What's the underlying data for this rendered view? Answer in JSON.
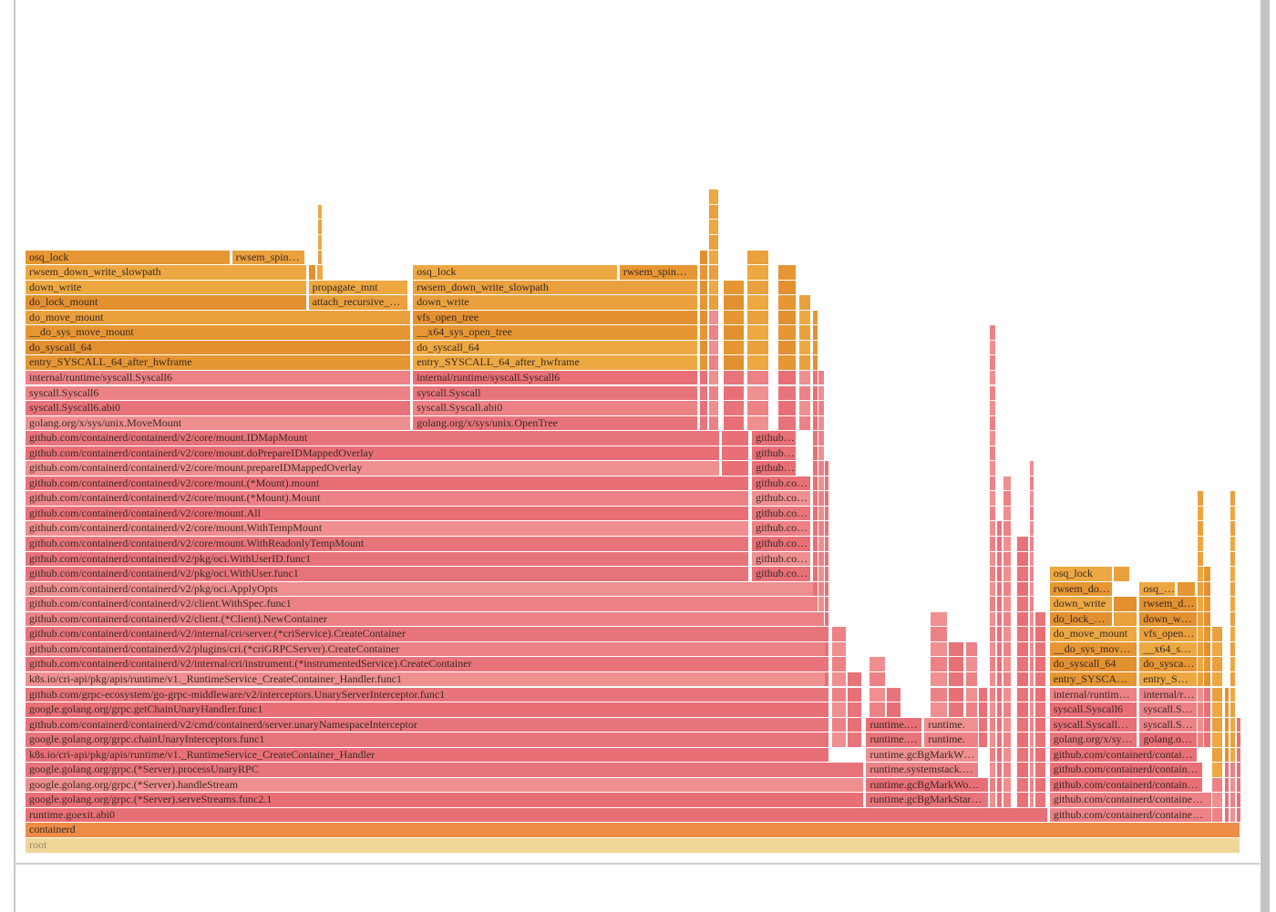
{
  "colors": {
    "kernel": [
      "#e69632",
      "#eaa03d",
      "#e39030",
      "#eda842"
    ],
    "go": [
      "#e8747b",
      "#ec8286",
      "#e96f77",
      "#ef8f90"
    ],
    "containerd": "#ec8c46",
    "root": "#efd699"
  },
  "chart_data": {
    "type": "flamegraph",
    "units": "percent of samples",
    "frames_format": [
      "depth",
      "start_pct",
      "width_pct",
      "name",
      "kind"
    ],
    "frames": [
      [
        0,
        0,
        100,
        "root",
        "r"
      ],
      [
        1,
        0,
        100,
        "containerd",
        "c"
      ],
      [
        2,
        0,
        84.2,
        "runtime.goexit.abi0",
        "p"
      ],
      [
        2,
        84.3,
        13.4,
        "github.com/containerd/containe…",
        "p"
      ],
      [
        3,
        0,
        69.0,
        "google.golang.org/grpc.(*Server).serveStreams.func2.1",
        "p"
      ],
      [
        3,
        69.2,
        10.1,
        "runtime.gcBgMarkStar…",
        "p"
      ],
      [
        3,
        84.3,
        13.4,
        "github.com/containerd/containe…",
        "p"
      ],
      [
        4,
        0,
        69.0,
        "google.golang.org/grpc.(*Server).handleStream",
        "p"
      ],
      [
        4,
        69.2,
        10.1,
        "runtime.gcBgMarkWo…",
        "p"
      ],
      [
        4,
        84.3,
        12.6,
        "github.com/containerd/contain…",
        "p"
      ],
      [
        5,
        0,
        69.0,
        "google.golang.org/grpc.(*Server).processUnaryRPC",
        "p"
      ],
      [
        5,
        69.2,
        9.3,
        "runtime.systemstack.…",
        "p"
      ],
      [
        5,
        84.3,
        12.6,
        "github.com/containerd/contain…",
        "p"
      ],
      [
        6,
        0,
        66.2,
        "k8s.io/cri-api/pkg/apis/runtime/v1._RuntimeService_CreateContainer_Handler",
        "p"
      ],
      [
        6,
        69.2,
        9.3,
        "runtime.gcBgMarkW…",
        "p"
      ],
      [
        6,
        84.3,
        12.2,
        "github.com/containerd/contai…",
        "p"
      ],
      [
        7,
        0,
        66.2,
        "google.golang.org/grpc.chainUnaryInterceptors.func1",
        "p"
      ],
      [
        7,
        69.2,
        4.6,
        "runtime.…",
        "p"
      ],
      [
        7,
        74.0,
        4.5,
        "runtime.…",
        "p"
      ],
      [
        7,
        84.3,
        7.2,
        "golang.org/x/sy…",
        "p"
      ],
      [
        7,
        91.7,
        4.8,
        "golang.o…",
        "p"
      ],
      [
        8,
        0,
        66.2,
        "github.com/containerd/containerd/v2/cmd/containerd/server.unaryNamespaceInterceptor",
        "p"
      ],
      [
        8,
        69.2,
        4.6,
        "runtime.…",
        "p"
      ],
      [
        8,
        74.0,
        4.5,
        "runtime.…",
        "p"
      ],
      [
        8,
        84.3,
        7.2,
        "syscall.Syscall…",
        "p"
      ],
      [
        8,
        91.7,
        4.8,
        "syscall.S…",
        "p"
      ],
      [
        9,
        0,
        66.2,
        "google.golang.org/grpc.getChainUnaryHandler.func1",
        "p"
      ],
      [
        9,
        84.3,
        7.2,
        "syscall.Syscall6",
        "p"
      ],
      [
        9,
        91.7,
        4.8,
        "syscall.S…",
        "p"
      ],
      [
        10,
        0,
        66.2,
        "github.com/grpc-ecosystem/go-grpc-middleware/v2/interceptors.UnaryServerInterceptor.func1",
        "p"
      ],
      [
        10,
        84.3,
        7.2,
        "internal/runtim…",
        "p"
      ],
      [
        10,
        91.7,
        4.8,
        "internal/r…",
        "p"
      ],
      [
        11,
        0,
        66.2,
        "k8s.io/cri-api/pkg/apis/runtime/v1._RuntimeService_CreateContainer_Handler.func1",
        "p"
      ],
      [
        11,
        84.3,
        7.2,
        "entry_SYSCA…",
        "o"
      ],
      [
        11,
        91.7,
        4.8,
        "entry_S…",
        "o"
      ],
      [
        12,
        0,
        66.2,
        "github.com/containerd/containerd/v2/internal/cri/instrument.(*instrumentedService).CreateContainer",
        "p"
      ],
      [
        12,
        84.3,
        7.2,
        "do_syscall_64",
        "o"
      ],
      [
        12,
        91.7,
        4.8,
        "do_sysca…",
        "o"
      ],
      [
        13,
        0,
        66.2,
        "github.com/containerd/containerd/v2/plugins/cri.(*criGRPCServer).CreateContainer",
        "p"
      ],
      [
        13,
        84.3,
        7.2,
        "__do_sys_mov…",
        "o"
      ],
      [
        13,
        91.7,
        4.8,
        "__x64_s…",
        "o"
      ],
      [
        14,
        0,
        66.2,
        "github.com/containerd/containerd/v2/internal/cri/server.(*criService).CreateContainer",
        "p"
      ],
      [
        14,
        84.3,
        7.2,
        "do_move_mount",
        "o"
      ],
      [
        14,
        91.7,
        4.8,
        "vfs_open…",
        "o"
      ],
      [
        15,
        0,
        65.8,
        "github.com/containerd/containerd/v2/client.(*Client).NewContainer",
        "p"
      ],
      [
        15,
        84.3,
        5.2,
        "do_lock_…",
        "o"
      ],
      [
        15,
        89.6,
        1.9,
        "",
        "o"
      ],
      [
        15,
        91.7,
        4.8,
        "down_w…",
        "o"
      ],
      [
        16,
        0,
        65.3,
        "github.com/containerd/containerd/v2/client.WithSpec.func1",
        "p"
      ],
      [
        16,
        84.3,
        5.2,
        "down_write",
        "o"
      ],
      [
        16,
        89.6,
        1.9,
        "",
        "o"
      ],
      [
        16,
        91.7,
        4.8,
        "rwsem_d…",
        "o"
      ],
      [
        17,
        0,
        65.3,
        "github.com/containerd/containerd/v2/pkg/oci.ApplyOpts",
        "p"
      ],
      [
        17,
        84.3,
        5.2,
        "rwsem_do…",
        "o"
      ],
      [
        17,
        91.7,
        3.0,
        "osq_…",
        "o"
      ],
      [
        17,
        94.8,
        1.5,
        "",
        "o"
      ],
      [
        18,
        0,
        59.6,
        "github.com/containerd/containerd/v2/pkg/oci.WithUser.func1",
        "p"
      ],
      [
        18,
        59.8,
        4.9,
        "github.co…",
        "p"
      ],
      [
        18,
        84.3,
        5.2,
        "osq_lock",
        "o"
      ],
      [
        18,
        89.6,
        1.3,
        "",
        "o"
      ],
      [
        19,
        0,
        59.6,
        "github.com/containerd/containerd/v2/pkg/oci.WithUserID.func1",
        "p"
      ],
      [
        19,
        59.8,
        4.9,
        "github.co…",
        "p"
      ],
      [
        20,
        0,
        59.6,
        "github.com/containerd/containerd/v2/core/mount.WithReadonlyTempMount",
        "p"
      ],
      [
        20,
        59.8,
        4.9,
        "github.co…",
        "p"
      ],
      [
        21,
        0,
        59.6,
        "github.com/containerd/containerd/v2/core/mount.WithTempMount",
        "p"
      ],
      [
        21,
        59.8,
        4.9,
        "github.co…",
        "p"
      ],
      [
        22,
        0,
        59.6,
        "github.com/containerd/containerd/v2/core/mount.All",
        "p"
      ],
      [
        22,
        59.8,
        4.9,
        "github.co…",
        "p"
      ],
      [
        23,
        0,
        59.6,
        "github.com/containerd/containerd/v2/core/mount.(*Mount).Mount",
        "p"
      ],
      [
        23,
        59.8,
        4.9,
        "github.co…",
        "p"
      ],
      [
        24,
        0,
        59.6,
        "github.com/containerd/containerd/v2/core/mount.(*Mount).mount",
        "p"
      ],
      [
        24,
        59.8,
        4.9,
        "github.co…",
        "p"
      ],
      [
        25,
        0,
        57.2,
        "github.com/containerd/containerd/v2/core/mount.prepareIDMappedOverlay",
        "p"
      ],
      [
        25,
        57.3,
        2.3,
        "",
        "p"
      ],
      [
        25,
        59.8,
        3.7,
        "github…",
        "p"
      ],
      [
        26,
        0,
        57.2,
        "github.com/containerd/containerd/v2/core/mount.doPrepareIDMappedOverlay",
        "p"
      ],
      [
        26,
        57.3,
        2.3,
        "",
        "p"
      ],
      [
        26,
        59.8,
        3.7,
        "github…",
        "p"
      ],
      [
        27,
        0,
        57.2,
        "github.com/containerd/containerd/v2/core/mount.IDMapMount",
        "p"
      ],
      [
        27,
        57.3,
        2.3,
        "",
        "p"
      ],
      [
        27,
        59.8,
        3.7,
        "github…",
        "p"
      ],
      [
        28,
        0,
        31.7,
        "golang.org/x/sys/unix.MoveMount",
        "p"
      ],
      [
        28,
        31.9,
        23.5,
        "golang.org/x/sys/unix.OpenTree",
        "p"
      ],
      [
        29,
        0,
        31.7,
        "syscall.Syscall6.abi0",
        "p"
      ],
      [
        29,
        31.9,
        23.5,
        "syscall.Syscall.abi0",
        "p"
      ],
      [
        30,
        0,
        31.7,
        "syscall.Syscall6",
        "p"
      ],
      [
        30,
        31.9,
        23.5,
        "syscall.Syscall",
        "p"
      ],
      [
        31,
        0,
        31.7,
        "internal/runtime/syscall.Syscall6",
        "p"
      ],
      [
        31,
        31.9,
        23.5,
        "internal/runtime/syscall.Syscall6",
        "p"
      ],
      [
        32,
        0,
        31.7,
        "entry_SYSCALL_64_after_hwframe",
        "o"
      ],
      [
        32,
        31.9,
        23.5,
        "entry_SYSCALL_64_after_hwframe",
        "o"
      ],
      [
        33,
        0,
        31.7,
        "do_syscall_64",
        "o"
      ],
      [
        33,
        31.9,
        23.5,
        "do_syscall_64",
        "o"
      ],
      [
        34,
        0,
        31.7,
        "__do_sys_move_mount",
        "o"
      ],
      [
        34,
        31.9,
        23.5,
        "__x64_sys_open_tree",
        "o"
      ],
      [
        35,
        0,
        31.7,
        "do_move_mount",
        "o"
      ],
      [
        35,
        31.9,
        23.5,
        "vfs_open_tree",
        "o"
      ],
      [
        36,
        0,
        23.2,
        "do_lock_mount",
        "o"
      ],
      [
        36,
        23.3,
        8.2,
        "attach_recursive_…",
        "o"
      ],
      [
        36,
        31.9,
        23.5,
        "down_write",
        "o"
      ],
      [
        37,
        0,
        23.2,
        "down_write",
        "o"
      ],
      [
        37,
        23.3,
        8.2,
        "propagate_mnt",
        "o"
      ],
      [
        37,
        31.9,
        23.5,
        "rwsem_down_write_slowpath",
        "o"
      ],
      [
        38,
        0,
        23.2,
        "rwsem_down_write_slowpath",
        "o"
      ],
      [
        38,
        23.3,
        0.6,
        "",
        "o"
      ],
      [
        38,
        24.0,
        0.5,
        "",
        "o"
      ],
      [
        38,
        31.9,
        16.9,
        "osq_lock",
        "o"
      ],
      [
        38,
        48.9,
        6.5,
        "rwsem_spin…",
        "o"
      ],
      [
        39,
        0,
        16.9,
        "osq_lock",
        "o"
      ],
      [
        39,
        17.0,
        6.0,
        "rwsem_spin…",
        "o"
      ],
      [
        39,
        24.1,
        0.3,
        "",
        "o"
      ],
      [
        40,
        24.1,
        0.3,
        "",
        "o"
      ],
      [
        41,
        24.1,
        0.3,
        "",
        "o"
      ],
      [
        42,
        24.1,
        0.2,
        "",
        "o"
      ]
    ],
    "narrow_stacks_format": [
      "from_depth",
      "to_depth",
      "start_pct",
      "width_pct",
      "kernel_from_depth"
    ],
    "narrow_stacks": [
      [
        28,
        39,
        55.5,
        0.7,
        32
      ],
      [
        28,
        43,
        56.3,
        0.8,
        36
      ],
      [
        28,
        37,
        57.5,
        1.7,
        32
      ],
      [
        28,
        39,
        59.4,
        1.8,
        32
      ],
      [
        28,
        38,
        62.0,
        1.5,
        32
      ],
      [
        28,
        36,
        63.7,
        1.0,
        32
      ],
      [
        17,
        35,
        64.8,
        0.5,
        32
      ],
      [
        16,
        31,
        65.3,
        0.5,
        99
      ],
      [
        7,
        25,
        65.8,
        0.4,
        99
      ],
      [
        7,
        14,
        66.4,
        1.2,
        99
      ],
      [
        7,
        11,
        67.7,
        1.2,
        99
      ],
      [
        9,
        12,
        69.5,
        1.3,
        99
      ],
      [
        9,
        10,
        70.9,
        1.2,
        99
      ],
      [
        9,
        15,
        74.5,
        1.4,
        99
      ],
      [
        9,
        13,
        76.0,
        1.3,
        99
      ],
      [
        7,
        13,
        77.4,
        1.0,
        99
      ],
      [
        7,
        10,
        78.5,
        0.7,
        99
      ],
      [
        3,
        34,
        79.4,
        0.5,
        99
      ],
      [
        3,
        21,
        80.0,
        0.4,
        99
      ],
      [
        3,
        24,
        80.5,
        0.7,
        99
      ],
      [
        3,
        20,
        81.6,
        1.0,
        99
      ],
      [
        3,
        25,
        82.7,
        0.3,
        99
      ],
      [
        3,
        15,
        83.1,
        0.9,
        99
      ],
      [
        7,
        23,
        96.5,
        0.5,
        11
      ],
      [
        7,
        18,
        97.0,
        0.6,
        11
      ],
      [
        2,
        14,
        97.7,
        0.9,
        5
      ],
      [
        2,
        10,
        98.7,
        0.4,
        6
      ],
      [
        2,
        23,
        99.2,
        0.4,
        6
      ],
      [
        2,
        8,
        99.7,
        0.3,
        99
      ]
    ]
  }
}
